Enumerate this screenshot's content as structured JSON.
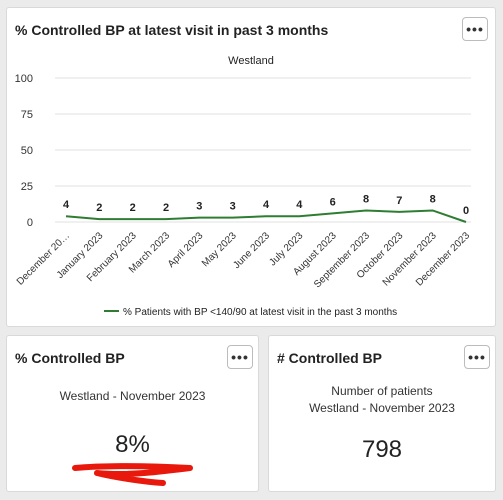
{
  "trend_card": {
    "title": "% Controlled BP at latest visit in past 3 months",
    "more_label": "•••"
  },
  "chart_data": {
    "type": "line",
    "title": "Westland",
    "categories": [
      "December 20…",
      "January 2023",
      "February 2023",
      "March 2023",
      "April 2023",
      "May 2023",
      "June 2023",
      "July 2023",
      "August 2023",
      "September 2023",
      "October 2023",
      "November 2023",
      "December 2023"
    ],
    "series": [
      {
        "name": "% Patients with BP <140/90 at latest visit in the past 3 months",
        "values": [
          4,
          2,
          2,
          2,
          3,
          3,
          4,
          4,
          6,
          8,
          7,
          8,
          0
        ],
        "color": "#2e7d32"
      }
    ],
    "ylim": [
      0,
      100
    ],
    "yticks": [
      0,
      25,
      50,
      75,
      100
    ],
    "grid": true,
    "legend": "bottom"
  },
  "controlled_card": {
    "title": "% Controlled BP",
    "more_label": "•••",
    "subtitle": "Westland - November 2023",
    "value": "8%"
  },
  "count_card": {
    "title": "# Controlled BP",
    "more_label": "•••",
    "subtitle_line1": "Number of patients",
    "subtitle_line2": "Westland - November 2023",
    "value": "798"
  },
  "colors": {
    "annotation_mark": "#e8180c",
    "series_line": "#2e7d32"
  }
}
